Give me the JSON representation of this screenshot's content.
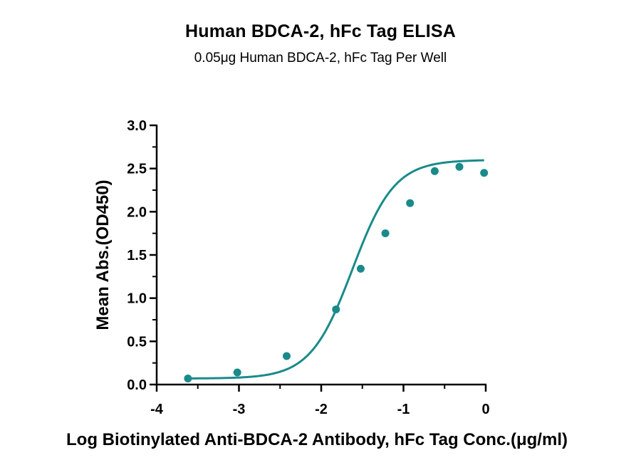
{
  "chart_data": {
    "type": "scatter",
    "title": "Human BDCA-2, hFc Tag ELISA",
    "subtitle": "0.05μg Human BDCA-2, hFc Tag Per Well",
    "xlabel": "Log Biotinylated Anti-BDCA-2 Antibody, hFc Tag Conc.(μg/ml)",
    "ylabel": "Mean Abs.(OD450)",
    "xlim": [
      -4,
      0
    ],
    "ylim": [
      0,
      3.0
    ],
    "x_ticks": [
      "-4",
      "-3",
      "-2",
      "-1",
      "0"
    ],
    "y_ticks": [
      "0.0",
      "0.5",
      "1.0",
      "1.5",
      "2.0",
      "2.5",
      "3.0"
    ],
    "grid": false,
    "color": "#1a8a8a",
    "series": [
      {
        "points": [
          {
            "x": -3.62,
            "y": 0.07
          },
          {
            "x": -3.02,
            "y": 0.14
          },
          {
            "x": -2.42,
            "y": 0.33
          },
          {
            "x": -1.82,
            "y": 0.87
          },
          {
            "x": -1.52,
            "y": 1.34
          },
          {
            "x": -1.22,
            "y": 1.75
          },
          {
            "x": -0.92,
            "y": 2.1
          },
          {
            "x": -0.62,
            "y": 2.47
          },
          {
            "x": -0.32,
            "y": 2.52
          },
          {
            "x": -0.02,
            "y": 2.45
          }
        ],
        "fit": {
          "model": "4PL",
          "bottom": 0.07,
          "top": 2.6,
          "logEC50": -1.62,
          "hill": 1.7
        }
      }
    ]
  }
}
